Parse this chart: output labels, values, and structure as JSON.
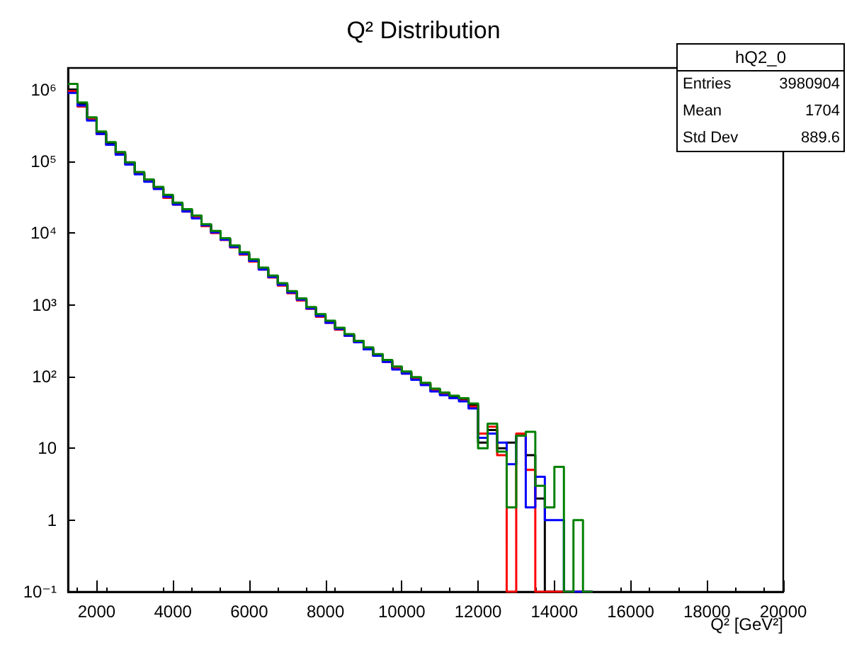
{
  "chart_data": {
    "type": "histogram",
    "title": "Q² Distribution",
    "xlabel": "Q² [GeV²]",
    "bins": [
      1250,
      1500,
      1750,
      2000,
      2250,
      2500,
      2750,
      3000,
      3250,
      3500,
      3750,
      4000,
      4250,
      4500,
      4750,
      5000,
      5250,
      5500,
      5750,
      6000,
      6250,
      6500,
      6750,
      7000,
      7250,
      7500,
      7750,
      8000,
      8250,
      8500,
      8750,
      9000,
      9250,
      9500,
      9750,
      10000,
      10250,
      10500,
      10750,
      11000,
      11250,
      11500,
      11750,
      12000,
      12250,
      12500,
      12750,
      13000,
      13250,
      13500,
      13750,
      14000,
      14250,
      14500,
      14750,
      15000
    ],
    "series": [
      {
        "color": "#000000",
        "values": [
          1000000,
          630000,
          400000,
          250000,
          180000,
          130000,
          95000,
          69000,
          55000,
          43000,
          33000,
          26000,
          21000,
          17000,
          13000,
          10500,
          8300,
          6600,
          5200,
          4200,
          3200,
          2500,
          1950,
          1500,
          1200,
          910,
          720,
          580,
          470,
          380,
          310,
          250,
          200,
          166,
          135,
          115,
          95,
          80,
          66,
          58,
          52,
          48,
          40,
          12,
          18,
          10,
          12,
          15,
          8,
          2,
          null,
          null,
          null,
          null,
          null
        ]
      },
      {
        "color": "#ff0000",
        "values": [
          950000,
          580000,
          390000,
          240000,
          170000,
          125000,
          92000,
          67000,
          53000,
          42000,
          31000,
          25000,
          20000,
          16500,
          12500,
          10000,
          8000,
          6300,
          5000,
          4000,
          3100,
          2400,
          1850,
          1450,
          1150,
          880,
          680,
          560,
          450,
          370,
          300,
          240,
          195,
          160,
          130,
          110,
          92,
          78,
          64,
          56,
          50,
          46,
          38,
          16,
          20,
          8,
          null,
          16,
          5,
          null,
          null,
          null,
          null,
          null,
          null
        ]
      },
      {
        "color": "#0000ff",
        "values": [
          900000,
          600000,
          370000,
          240000,
          170000,
          124000,
          90000,
          66000,
          52000,
          41000,
          32000,
          25000,
          20000,
          16000,
          12800,
          10200,
          8100,
          6400,
          5100,
          4100,
          3100,
          2450,
          1900,
          1480,
          1180,
          890,
          700,
          560,
          460,
          370,
          300,
          240,
          195,
          160,
          125,
          110,
          90,
          76,
          62,
          55,
          50,
          45,
          36,
          14,
          16,
          12,
          6,
          15,
          1.5,
          4,
          1,
          1,
          null,
          null,
          null
        ]
      },
      {
        "color": "#008000",
        "values": [
          1200000,
          660000,
          410000,
          260000,
          185000,
          135000,
          97000,
          71000,
          56000,
          44000,
          34000,
          26500,
          21500,
          17500,
          13300,
          10700,
          8500,
          6700,
          5400,
          4300,
          3300,
          2550,
          2000,
          1550,
          1230,
          930,
          740,
          600,
          480,
          390,
          315,
          255,
          205,
          170,
          138,
          118,
          98,
          82,
          68,
          60,
          54,
          50,
          42,
          10,
          22,
          9,
          1.5,
          15,
          17,
          3,
          1.5,
          5.5,
          null,
          1,
          null
        ]
      }
    ],
    "xlim": [
      1250,
      20000
    ],
    "xticks": [
      2000,
      4000,
      6000,
      8000,
      10000,
      12000,
      14000,
      16000,
      18000,
      20000
    ],
    "ylim": [
      0.1,
      2000000
    ],
    "log": "y",
    "yticks": [
      {
        "value": 0.1,
        "label": "10⁻¹"
      },
      1,
      10,
      {
        "value": 100,
        "label": "10²"
      },
      {
        "value": 1000,
        "label": "10³"
      },
      {
        "value": 10000,
        "label": "10⁴"
      },
      {
        "value": 100000,
        "label": "10⁵"
      },
      {
        "value": 1000000,
        "label": "10⁶"
      }
    ],
    "annotations": [
      "hQ2_0",
      "Entries",
      "3980904",
      "Mean",
      "1704",
      "Std Dev",
      "889.6"
    ],
    "grid": false
  }
}
